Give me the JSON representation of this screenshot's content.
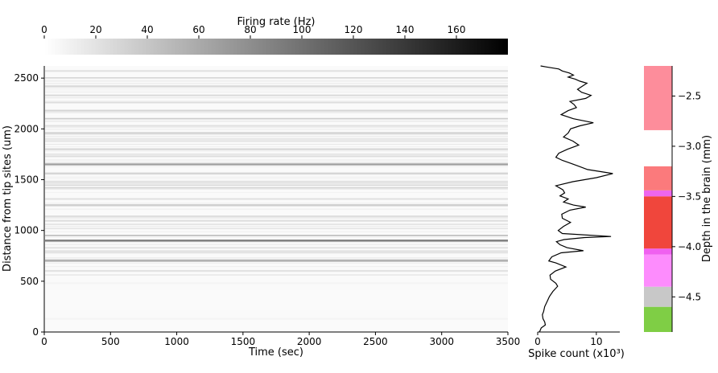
{
  "colorbar": {
    "label": "Firing rate (Hz)",
    "min": 0,
    "max": 180,
    "ticks": [
      0,
      20,
      40,
      60,
      80,
      100,
      120,
      140,
      160
    ],
    "tick_labels": [
      "0",
      "20",
      "40",
      "60",
      "80",
      "100",
      "120",
      "140",
      "160"
    ]
  },
  "chart_data": [
    {
      "type": "heatmap",
      "xlabel": "Time (sec)",
      "ylabel": "Distance from tip sites (um)",
      "xlim": [
        0,
        3500
      ],
      "ylim": [
        0,
        2620
      ],
      "x_ticks": [
        0,
        500,
        1000,
        1500,
        2000,
        2500,
        3000,
        3500
      ],
      "x_tick_labels": [
        "0",
        "500",
        "1000",
        "1500",
        "2000",
        "2500",
        "3000",
        "3500"
      ],
      "y_ticks": [
        0,
        500,
        1000,
        1500,
        2000,
        2500
      ],
      "y_tick_labels": [
        "0",
        "500",
        "1000",
        "1500",
        "2000",
        "2500"
      ],
      "colormap": "greys",
      "bands": [
        {
          "depth": 2570,
          "rate": 22
        },
        {
          "depth": 2500,
          "rate": 18
        },
        {
          "depth": 2420,
          "rate": 28
        },
        {
          "depth": 2330,
          "rate": 26
        },
        {
          "depth": 2260,
          "rate": 24
        },
        {
          "depth": 2180,
          "rate": 30
        },
        {
          "depth": 2100,
          "rate": 26
        },
        {
          "depth": 2030,
          "rate": 22
        },
        {
          "depth": 1960,
          "rate": 32
        },
        {
          "depth": 1880,
          "rate": 20
        },
        {
          "depth": 1800,
          "rate": 30
        },
        {
          "depth": 1730,
          "rate": 24
        },
        {
          "depth": 1650,
          "rate": 55
        },
        {
          "depth": 1560,
          "rate": 20
        },
        {
          "depth": 1420,
          "rate": 28
        },
        {
          "depth": 1310,
          "rate": 22
        },
        {
          "depth": 1250,
          "rate": 34
        },
        {
          "depth": 1140,
          "rate": 22
        },
        {
          "depth": 1060,
          "rate": 18
        },
        {
          "depth": 950,
          "rate": 40
        },
        {
          "depth": 900,
          "rate": 85
        },
        {
          "depth": 830,
          "rate": 18
        },
        {
          "depth": 780,
          "rate": 14
        },
        {
          "depth": 700,
          "rate": 45
        },
        {
          "depth": 600,
          "rate": 14
        },
        {
          "depth": 480,
          "rate": 8
        },
        {
          "depth": 130,
          "rate": 8
        }
      ]
    },
    {
      "type": "line",
      "xlabel": "Spike count (x10³)",
      "ylabel": "",
      "xlim": [
        0,
        14
      ],
      "ylim": [
        0,
        2620
      ],
      "x_ticks": [
        0,
        10
      ],
      "x_tick_labels": [
        "0",
        "10"
      ],
      "x": [
        0.3,
        0.6,
        1.3,
        1.2,
        0.9,
        0.8,
        1.0,
        1.2,
        1.6,
        2.0,
        2.6,
        3.4,
        3.1,
        2.2,
        2.1,
        3.0,
        4.8,
        3.1,
        1.9,
        2.4,
        4.0,
        7.8,
        5.0,
        3.8,
        3.2,
        4.5,
        8.0,
        12.5,
        4.2,
        3.5,
        4.4,
        5.6,
        4.2,
        4.1,
        5.5,
        8.2,
        6.1,
        4.4,
        5.2,
        3.8,
        4.6,
        4.3,
        3.1,
        6.0,
        10.0,
        12.8,
        8.5,
        7.1,
        5.7,
        4.2,
        3.1,
        3.6,
        5.1,
        7.0,
        6.0,
        4.4,
        5.2,
        5.6,
        7.2,
        9.5,
        6.1,
        4.0,
        5.2,
        6.6,
        6.2,
        5.5,
        8.2,
        9.1,
        7.5,
        6.8,
        7.6,
        8.4,
        7.2,
        6.4,
        5.2,
        6.1,
        5.4,
        4.2,
        3.6,
        1.5,
        0.5
      ],
      "y": [
        0,
        40,
        70,
        100,
        130,
        170,
        200,
        250,
        300,
        350,
        400,
        450,
        480,
        520,
        560,
        600,
        640,
        680,
        700,
        740,
        780,
        800,
        830,
        860,
        890,
        910,
        930,
        940,
        970,
        1000,
        1040,
        1080,
        1120,
        1160,
        1200,
        1230,
        1250,
        1280,
        1310,
        1340,
        1370,
        1400,
        1440,
        1480,
        1520,
        1560,
        1600,
        1630,
        1660,
        1690,
        1720,
        1760,
        1800,
        1840,
        1880,
        1920,
        1960,
        2000,
        2030,
        2060,
        2100,
        2140,
        2180,
        2210,
        2240,
        2270,
        2300,
        2330,
        2360,
        2390,
        2420,
        2450,
        2470,
        2490,
        2510,
        2530,
        2550,
        2570,
        2590,
        2610,
        2620
      ]
    },
    {
      "type": "bar",
      "orientation": "stacked-vertical",
      "ylabel": "Depth in the brain (mm)",
      "ylim": [
        -4.85,
        -2.2
      ],
      "y_ticks": [
        -2.5,
        -3.0,
        -3.5,
        -4.0,
        -4.5
      ],
      "y_tick_labels": [
        "−2.5",
        "−3.0",
        "−3.5",
        "−4.0",
        "−4.5"
      ],
      "regions": [
        {
          "top": -2.2,
          "bottom": -2.84,
          "color": "#fd8d9b"
        },
        {
          "top": -3.2,
          "bottom": -3.44,
          "color": "#fb7a7c"
        },
        {
          "top": -3.44,
          "bottom": -3.5,
          "color": "#ee66ee"
        },
        {
          "top": -3.5,
          "bottom": -4.02,
          "color": "#f0463c"
        },
        {
          "top": -4.02,
          "bottom": -4.08,
          "color": "#f060f0"
        },
        {
          "top": -4.08,
          "bottom": -4.4,
          "color": "#fd8cfd"
        },
        {
          "top": -4.4,
          "bottom": -4.6,
          "color": "#c8c8c8"
        },
        {
          "top": -4.6,
          "bottom": -4.85,
          "color": "#7fce45"
        }
      ]
    }
  ]
}
